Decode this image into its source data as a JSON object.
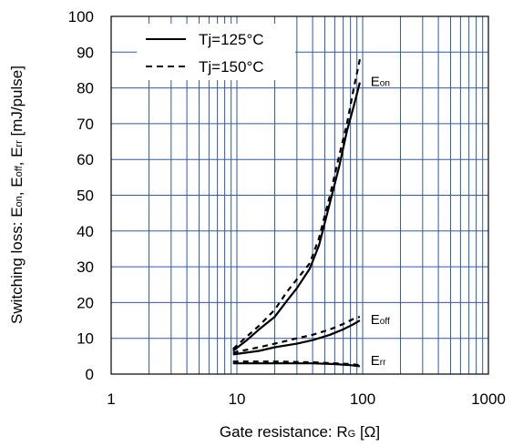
{
  "chart_data": {
    "type": "line",
    "xscale": "log",
    "xlim": [
      1,
      1000
    ],
    "ylim": [
      0,
      100
    ],
    "grid": true,
    "x_ticks": [
      "1",
      "10",
      "100",
      "1000"
    ],
    "y_ticks": [
      "0",
      "10",
      "20",
      "30",
      "40",
      "50",
      "60",
      "70",
      "80",
      "90",
      "100"
    ],
    "xlabel": {
      "main": "Gate resistance: R",
      "sub": "G",
      "tail": " [Ω]"
    },
    "ylabel": {
      "p1": "Switching loss: E",
      "s1": "on",
      "p2": ", E",
      "s2": "off",
      "p3": ", E",
      "s3": "rr",
      "p4": " [mJ/pulse]"
    },
    "legend": {
      "position": "top-left",
      "entries": [
        {
          "label": "Tj=125°C",
          "style": "solid"
        },
        {
          "label": "Tj=150°C",
          "style": "dashed"
        }
      ]
    },
    "curve_labels": [
      {
        "prefix": "E",
        "sub": "on"
      },
      {
        "prefix": "E",
        "sub": "off"
      },
      {
        "prefix": "E",
        "sub": "rr"
      }
    ],
    "series": [
      {
        "group": "Eon",
        "temp": "125°C",
        "style": "solid",
        "x": [
          9.3,
          12,
          15,
          20,
          25,
          30,
          38,
          45,
          55,
          65,
          75,
          85,
          95
        ],
        "y": [
          6.5,
          9.5,
          12.5,
          16,
          20.5,
          24,
          29.5,
          36,
          48,
          58,
          68,
          75,
          81.5
        ]
      },
      {
        "group": "Eon",
        "temp": "150°C",
        "style": "dashed",
        "x": [
          9.3,
          12,
          15,
          20,
          25,
          30,
          38,
          45,
          55,
          65,
          75,
          85,
          95
        ],
        "y": [
          7,
          10.5,
          13.5,
          18,
          23,
          26.5,
          31,
          38,
          50,
          61,
          70,
          80,
          88
        ]
      },
      {
        "group": "Eoff",
        "temp": "125°C",
        "style": "solid",
        "x": [
          9.3,
          15,
          20,
          30,
          40,
          55,
          70,
          85,
          95
        ],
        "y": [
          5.5,
          6.5,
          7.5,
          8.5,
          9.5,
          11,
          12.5,
          14,
          15
        ]
      },
      {
        "group": "Eoff",
        "temp": "150°C",
        "style": "dashed",
        "x": [
          9.3,
          15,
          20,
          30,
          40,
          55,
          70,
          85,
          95
        ],
        "y": [
          6,
          7.5,
          8.5,
          10,
          11,
          12.5,
          14,
          15.5,
          16
        ]
      },
      {
        "group": "Err",
        "temp": "125°C",
        "style": "solid",
        "x": [
          9.3,
          20,
          40,
          60,
          80,
          95
        ],
        "y": [
          3,
          3,
          3,
          2.8,
          2.5,
          2.2
        ]
      },
      {
        "group": "Err",
        "temp": "150°C",
        "style": "dashed",
        "x": [
          9.3,
          20,
          40,
          60,
          80,
          95
        ],
        "y": [
          3.5,
          3.5,
          3.3,
          3,
          2.8,
          2.5
        ]
      }
    ]
  }
}
